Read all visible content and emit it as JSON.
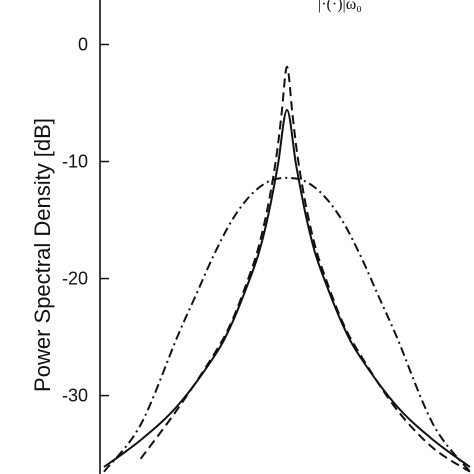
{
  "chart_data": {
    "type": "line",
    "ylabel": "Power Spectral Density [dB]",
    "xlabel": "",
    "ylim": [
      -36.7,
      3.8
    ],
    "yticks": [
      0,
      -10,
      -20,
      -30
    ],
    "ytick_labels": [
      "0",
      "-10",
      "-20",
      "-30"
    ],
    "grid": false,
    "legend_fragment": "|·(·)|ω₀",
    "x_domain": [
      -1,
      1
    ],
    "series": [
      {
        "style": "solid",
        "x": [
          -1.0,
          -0.8,
          -0.6,
          -0.4,
          -0.3,
          -0.2,
          -0.15,
          -0.1,
          -0.05,
          0.0,
          0.05,
          0.1,
          0.15,
          0.2,
          0.3,
          0.4,
          0.6,
          0.8,
          1.0
        ],
        "y": [
          -36.1,
          -33.8,
          -30.9,
          -26.7,
          -23.8,
          -19.9,
          -17.6,
          -14.4,
          -10.3,
          -5.6,
          -10.3,
          -14.4,
          -17.6,
          -19.9,
          -23.8,
          -26.7,
          -30.9,
          -33.8,
          -36.1
        ]
      },
      {
        "style": "dashed",
        "x": [
          -0.8,
          -0.6,
          -0.4,
          -0.3,
          -0.2,
          -0.15,
          -0.1,
          -0.06,
          -0.03,
          0.0,
          0.03,
          0.06,
          0.1,
          0.15,
          0.2,
          0.3,
          0.4,
          0.6,
          0.8,
          1.0
        ],
        "y": [
          -35.4,
          -31.2,
          -26.5,
          -23.6,
          -19.5,
          -17.0,
          -13.5,
          -9.8,
          -6.0,
          -1.9,
          -6.0,
          -9.8,
          -13.5,
          -17.0,
          -19.5,
          -23.6,
          -26.5,
          -31.2,
          -34.5,
          -36.5
        ]
      },
      {
        "style": "dash-dot",
        "x": [
          -1.0,
          -0.8,
          -0.6,
          -0.5,
          -0.4,
          -0.3,
          -0.2,
          -0.1,
          0.0,
          0.1,
          0.2,
          0.3,
          0.4,
          0.5,
          0.6,
          0.8,
          1.0
        ],
        "y": [
          -36.5,
          -32.5,
          -25.0,
          -21.5,
          -18.0,
          -15.0,
          -12.9,
          -11.7,
          -11.4,
          -11.7,
          -12.9,
          -15.0,
          -18.0,
          -21.5,
          -25.0,
          -32.5,
          -36.5
        ]
      }
    ]
  }
}
